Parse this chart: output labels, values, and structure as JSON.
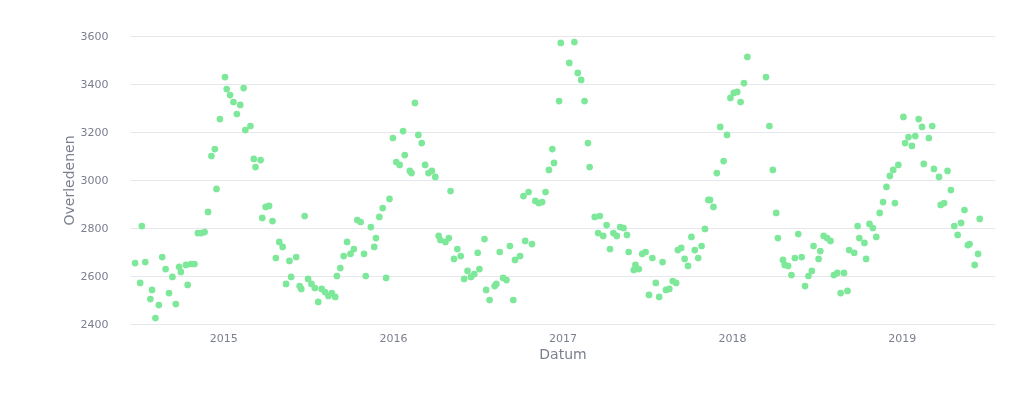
{
  "chart_data": {
    "type": "scatter",
    "xlabel": "Datum",
    "ylabel": "Overledenen",
    "xlim": [
      2014.45,
      2019.55
    ],
    "xticks": [
      2015,
      2016,
      2017,
      2018,
      2019
    ],
    "ylim": [
      2400,
      3600
    ],
    "yticks": [
      2400,
      2600,
      2800,
      3000,
      3200,
      3400,
      3600
    ],
    "grid": "y",
    "marker": "circle",
    "legend": false,
    "series": [
      {
        "color": "#7ee89a",
        "x": [
          2014.48,
          2014.51,
          2014.52,
          2014.54,
          2014.57,
          2014.58,
          2014.6,
          2014.62,
          2014.64,
          2014.66,
          2014.68,
          2014.7,
          2014.72,
          2014.74,
          2014.75,
          2014.78,
          2014.79,
          2014.81,
          2014.83,
          2014.85,
          2014.87,
          2014.89,
          2014.91,
          2014.93,
          2014.95,
          2014.96,
          2014.98,
          2015.01,
          2015.02,
          2015.04,
          2015.06,
          2015.08,
          2015.1,
          2015.12,
          2015.13,
          2015.16,
          2015.18,
          2015.19,
          2015.22,
          2015.23,
          2015.25,
          2015.27,
          2015.29,
          2015.31,
          2015.33,
          2015.35,
          2015.37,
          2015.39,
          2015.4,
          2015.43,
          2015.45,
          2015.46,
          2015.48,
          2015.5,
          2015.52,
          2015.54,
          2015.56,
          2015.58,
          2015.6,
          2015.62,
          2015.64,
          2015.66,
          2015.67,
          2015.69,
          2015.71,
          2015.73,
          2015.75,
          2015.77,
          2015.79,
          2015.81,
          2015.83,
          2015.84,
          2015.87,
          2015.89,
          2015.9,
          2015.92,
          2015.94,
          2015.96,
          2015.98,
          2016.0,
          2016.02,
          2016.04,
          2016.06,
          2016.07,
          2016.1,
          2016.11,
          2016.13,
          2016.15,
          2016.17,
          2016.19,
          2016.21,
          2016.23,
          2016.25,
          2016.27,
          2016.28,
          2016.31,
          2016.33,
          2016.34,
          2016.36,
          2016.38,
          2016.4,
          2016.42,
          2016.44,
          2016.46,
          2016.48,
          2016.5,
          2016.51,
          2016.54,
          2016.55,
          2016.57,
          2016.6,
          2016.61,
          2016.63,
          2016.65,
          2016.67,
          2016.69,
          2016.71,
          2016.72,
          2016.75,
          2016.77,
          2016.78,
          2016.8,
          2016.82,
          2016.84,
          2016.86,
          2016.88,
          2016.9,
          2016.92,
          2016.94,
          2016.95,
          2016.98,
          2016.99,
          2017.04,
          2017.07,
          2017.09,
          2017.11,
          2017.13,
          2017.15,
          2017.16,
          2017.19,
          2017.21,
          2017.22,
          2017.24,
          2017.26,
          2017.28,
          2017.3,
          2017.32,
          2017.34,
          2017.36,
          2017.38,
          2017.39,
          2017.42,
          2017.43,
          2017.45,
          2017.47,
          2017.49,
          2017.51,
          2017.53,
          2017.55,
          2017.57,
          2017.59,
          2017.61,
          2017.63,
          2017.65,
          2017.67,
          2017.68,
          2017.7,
          2017.72,
          2017.74,
          2017.76,
          2017.78,
          2017.8,
          2017.82,
          2017.84,
          2017.86,
          2017.87,
          2017.89,
          2017.91,
          2017.93,
          2017.95,
          2017.97,
          2017.99,
          2018.01,
          2018.03,
          2018.05,
          2018.07,
          2018.09,
          2018.2,
          2018.22,
          2018.24,
          2018.26,
          2018.27,
          2018.3,
          2018.31,
          2018.33,
          2018.35,
          2018.37,
          2018.39,
          2018.41,
          2018.43,
          2018.45,
          2018.47,
          2018.48,
          2018.51,
          2018.52,
          2018.54,
          2018.56,
          2018.58,
          2018.6,
          2018.62,
          2018.64,
          2018.66,
          2018.68,
          2018.69,
          2018.72,
          2018.74,
          2018.75,
          2018.78,
          2018.79,
          2018.81,
          2018.83,
          2018.85,
          2018.87,
          2018.89,
          2018.91,
          2018.93,
          2018.95,
          2018.96,
          2018.98,
          2019.01,
          2019.02,
          2019.04,
          2019.06,
          2019.08,
          2019.1,
          2019.12,
          2019.13,
          2019.16,
          2019.18,
          2019.19,
          2019.22,
          2019.23,
          2019.25,
          2019.27,
          2019.29,
          2019.31,
          2019.33,
          2019.35,
          2019.37,
          2019.39,
          2019.4,
          2019.43,
          2019.45,
          2019.46
        ],
        "values": [
          2654,
          2571,
          2808,
          2658,
          2504,
          2542,
          2425,
          2479,
          2679,
          2629,
          2529,
          2596,
          2483,
          2638,
          2617,
          2646,
          2563,
          2650,
          2650,
          2779,
          2779,
          2783,
          2867,
          3100,
          3129,
          2963,
          3254,
          3429,
          3379,
          3354,
          3325,
          3275,
          3313,
          3383,
          3208,
          3225,
          3088,
          3054,
          3083,
          2842,
          2888,
          2892,
          2829,
          2675,
          2742,
          2721,
          2567,
          2663,
          2596,
          2679,
          2558,
          2546,
          2850,
          2588,
          2567,
          2550,
          2492,
          2546,
          2533,
          2517,
          2529,
          2513,
          2600,
          2633,
          2683,
          2742,
          2692,
          2712,
          2833,
          2825,
          2692,
          2600,
          2804,
          2721,
          2758,
          2846,
          2883,
          2592,
          2921,
          3175,
          3075,
          3063,
          3204,
          3104,
          3038,
          3029,
          3321,
          3188,
          3154,
          3063,
          3029,
          3038,
          3013,
          2767,
          2750,
          2742,
          2758,
          2954,
          2671,
          2712,
          2683,
          2588,
          2621,
          2596,
          2608,
          2696,
          2629,
          2754,
          2542,
          2500,
          2558,
          2567,
          2700,
          2592,
          2583,
          2725,
          2500,
          2667,
          2683,
          2933,
          2746,
          2950,
          2733,
          2913,
          2904,
          2908,
          2950,
          3042,
          3129,
          3071,
          3329,
          3571,
          3488,
          3575,
          3446,
          3417,
          3329,
          3154,
          3054,
          2846,
          2779,
          2850,
          2767,
          2812,
          2712,
          2779,
          2767,
          2804,
          2800,
          2771,
          2700,
          2625,
          2646,
          2629,
          2692,
          2700,
          2521,
          2675,
          2571,
          2513,
          2658,
          2542,
          2546,
          2579,
          2571,
          2708,
          2717,
          2671,
          2642,
          2763,
          2708,
          2675,
          2725,
          2796,
          2917,
          2917,
          2888,
          3029,
          3221,
          3079,
          3188,
          3342,
          3363,
          3367,
          3325,
          3404,
          3513,
          3429,
          3225,
          3042,
          2863,
          2758,
          2667,
          2646,
          2642,
          2604,
          2675,
          2775,
          2679,
          2558,
          2600,
          2621,
          2725,
          2671,
          2704,
          2767,
          2758,
          2746,
          2604,
          2613,
          2529,
          2613,
          2538,
          2708,
          2696,
          2808,
          2758,
          2738,
          2671,
          2817,
          2800,
          2763,
          2863,
          2908,
          2971,
          3017,
          3042,
          2904,
          3063,
          3263,
          3154,
          3179,
          3142,
          3183,
          3254,
          3221,
          3067,
          3175,
          3225,
          3046,
          3013,
          2896,
          2904,
          3038,
          2958,
          2808,
          2771,
          2821,
          2875,
          2729,
          2733,
          2646,
          2692,
          2838
        ]
      }
    ]
  }
}
